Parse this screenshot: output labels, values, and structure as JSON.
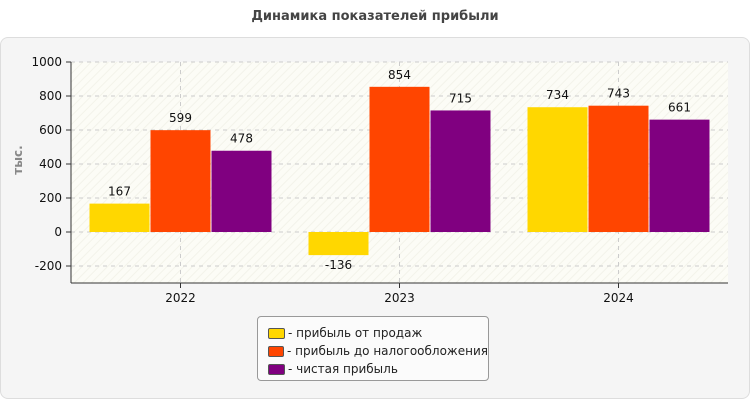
{
  "chart_data": {
    "type": "bar",
    "title": "Динамика показателей прибыли",
    "ylabel": "тыс.",
    "xlabel": "",
    "categories": [
      "2022",
      "2023",
      "2024"
    ],
    "ylim": [
      -300,
      1000
    ],
    "yticks": [
      1000,
      800,
      600,
      400,
      200,
      0,
      -200
    ],
    "grid": true,
    "legend_position": "bottom-center",
    "series": [
      {
        "name": "- прибыль от продаж",
        "color": "#ffd700",
        "values": [
          167,
          -136,
          734
        ]
      },
      {
        "name": "- прибыль до налогообложения",
        "color": "#ff4500",
        "values": [
          599,
          854,
          743
        ]
      },
      {
        "name": "- чистая прибыль",
        "color": "#800080",
        "values": [
          478,
          715,
          661
        ]
      }
    ]
  }
}
